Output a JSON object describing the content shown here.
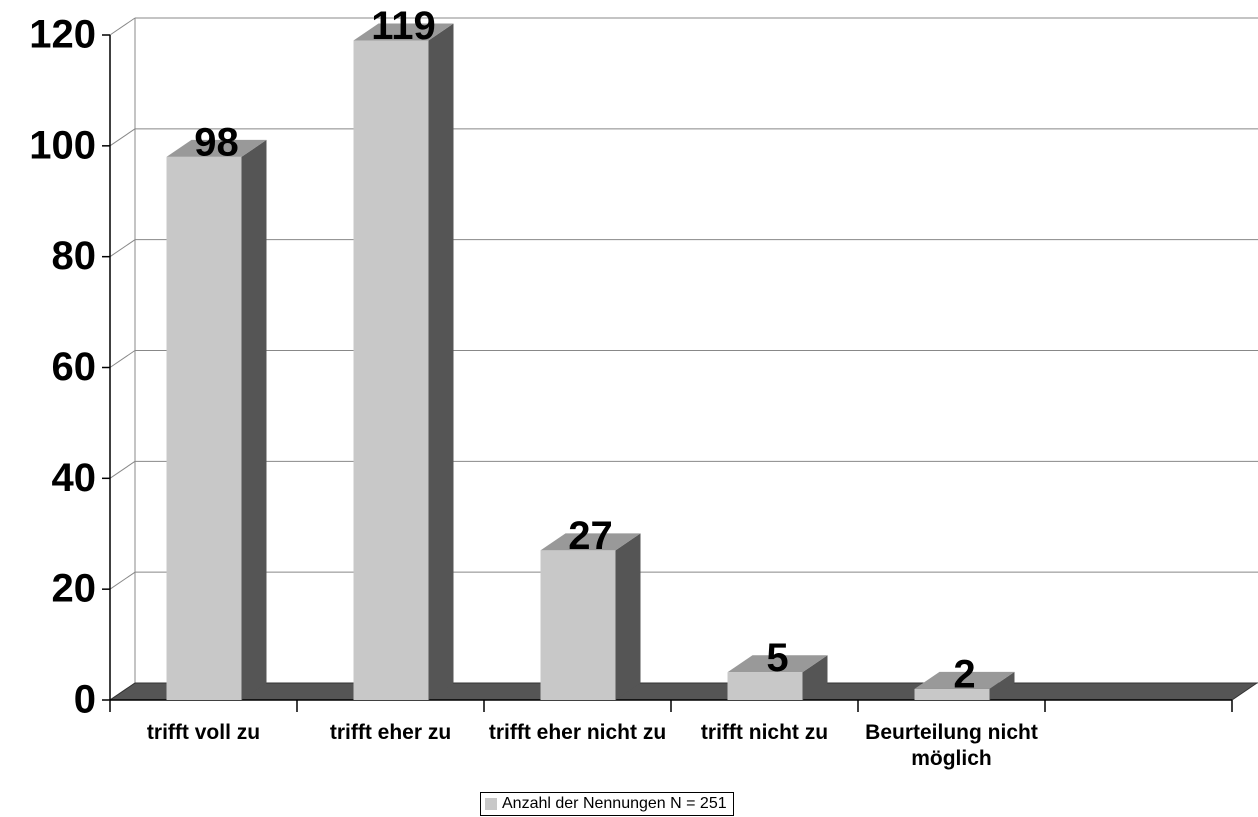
{
  "chart_data": {
    "type": "bar3d",
    "categories": [
      "trifft voll zu",
      "trifft eher zu",
      "trifft eher nicht zu",
      "trifft nicht zu",
      "Beurteilung nicht möglich",
      null
    ],
    "series": [
      {
        "name": "Anzahl der Nennungen N = 251",
        "color": "#c8c8c8",
        "values": [
          98,
          119,
          27,
          5,
          2,
          null
        ]
      }
    ],
    "ylim": [
      0,
      120
    ],
    "yticks": [
      0,
      20,
      40,
      60,
      80,
      100,
      120
    ],
    "grid": true,
    "legend": "bottom"
  }
}
